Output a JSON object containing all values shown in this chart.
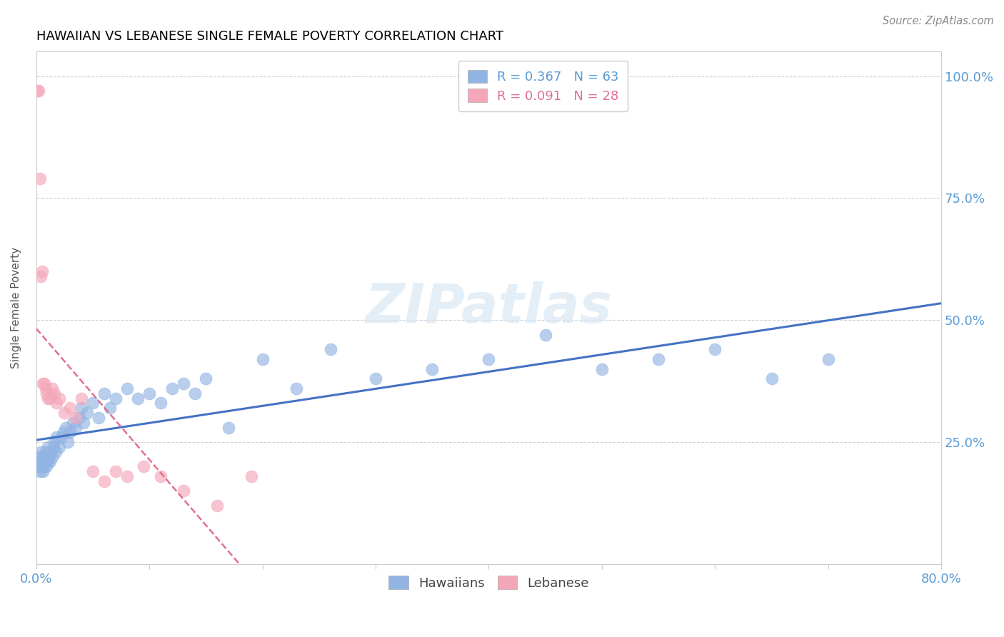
{
  "title": "HAWAIIAN VS LEBANESE SINGLE FEMALE POVERTY CORRELATION CHART",
  "source": "Source: ZipAtlas.com",
  "ylabel": "Single Female Poverty",
  "watermark": "ZIPatlas",
  "legend_hawaiians": "Hawaiians",
  "legend_lebanese": "Lebanese",
  "r_hawaiians": 0.367,
  "n_hawaiians": 63,
  "r_lebanese": 0.091,
  "n_lebanese": 28,
  "color_hawaiians": "#92b4e3",
  "color_lebanese": "#f4a7b9",
  "color_hawaiians_line": "#4472c4",
  "color_lebanese_line": "#e07090",
  "xmin": 0.0,
  "xmax": 0.8,
  "ymin": 0.0,
  "ymax": 1.05,
  "hawaiians_x": [
    0.001,
    0.002,
    0.003,
    0.004,
    0.004,
    0.005,
    0.005,
    0.006,
    0.006,
    0.007,
    0.007,
    0.008,
    0.008,
    0.009,
    0.009,
    0.01,
    0.01,
    0.011,
    0.012,
    0.013,
    0.014,
    0.015,
    0.016,
    0.017,
    0.018,
    0.02,
    0.022,
    0.024,
    0.026,
    0.028,
    0.03,
    0.032,
    0.035,
    0.038,
    0.04,
    0.042,
    0.045,
    0.05,
    0.055,
    0.06,
    0.065,
    0.07,
    0.08,
    0.09,
    0.1,
    0.11,
    0.12,
    0.13,
    0.14,
    0.15,
    0.17,
    0.2,
    0.23,
    0.26,
    0.3,
    0.35,
    0.4,
    0.45,
    0.5,
    0.55,
    0.6,
    0.65,
    0.7
  ],
  "hawaiians_y": [
    0.2,
    0.22,
    0.19,
    0.21,
    0.23,
    0.2,
    0.22,
    0.19,
    0.21,
    0.2,
    0.22,
    0.21,
    0.23,
    0.2,
    0.22,
    0.21,
    0.24,
    0.22,
    0.21,
    0.23,
    0.22,
    0.24,
    0.25,
    0.23,
    0.26,
    0.24,
    0.26,
    0.27,
    0.28,
    0.25,
    0.27,
    0.29,
    0.28,
    0.3,
    0.32,
    0.29,
    0.31,
    0.33,
    0.3,
    0.35,
    0.32,
    0.34,
    0.36,
    0.34,
    0.35,
    0.33,
    0.36,
    0.37,
    0.35,
    0.38,
    0.28,
    0.42,
    0.36,
    0.44,
    0.38,
    0.4,
    0.42,
    0.47,
    0.4,
    0.42,
    0.44,
    0.38,
    0.42
  ],
  "lebanese_x": [
    0.001,
    0.002,
    0.003,
    0.004,
    0.005,
    0.006,
    0.007,
    0.008,
    0.009,
    0.01,
    0.012,
    0.014,
    0.016,
    0.018,
    0.02,
    0.025,
    0.03,
    0.035,
    0.04,
    0.05,
    0.06,
    0.07,
    0.08,
    0.095,
    0.11,
    0.13,
    0.16,
    0.19
  ],
  "lebanese_y": [
    0.97,
    0.97,
    0.79,
    0.59,
    0.6,
    0.37,
    0.37,
    0.36,
    0.35,
    0.34,
    0.34,
    0.36,
    0.35,
    0.33,
    0.34,
    0.31,
    0.32,
    0.3,
    0.34,
    0.19,
    0.17,
    0.19,
    0.18,
    0.2,
    0.18,
    0.15,
    0.12,
    0.18
  ]
}
